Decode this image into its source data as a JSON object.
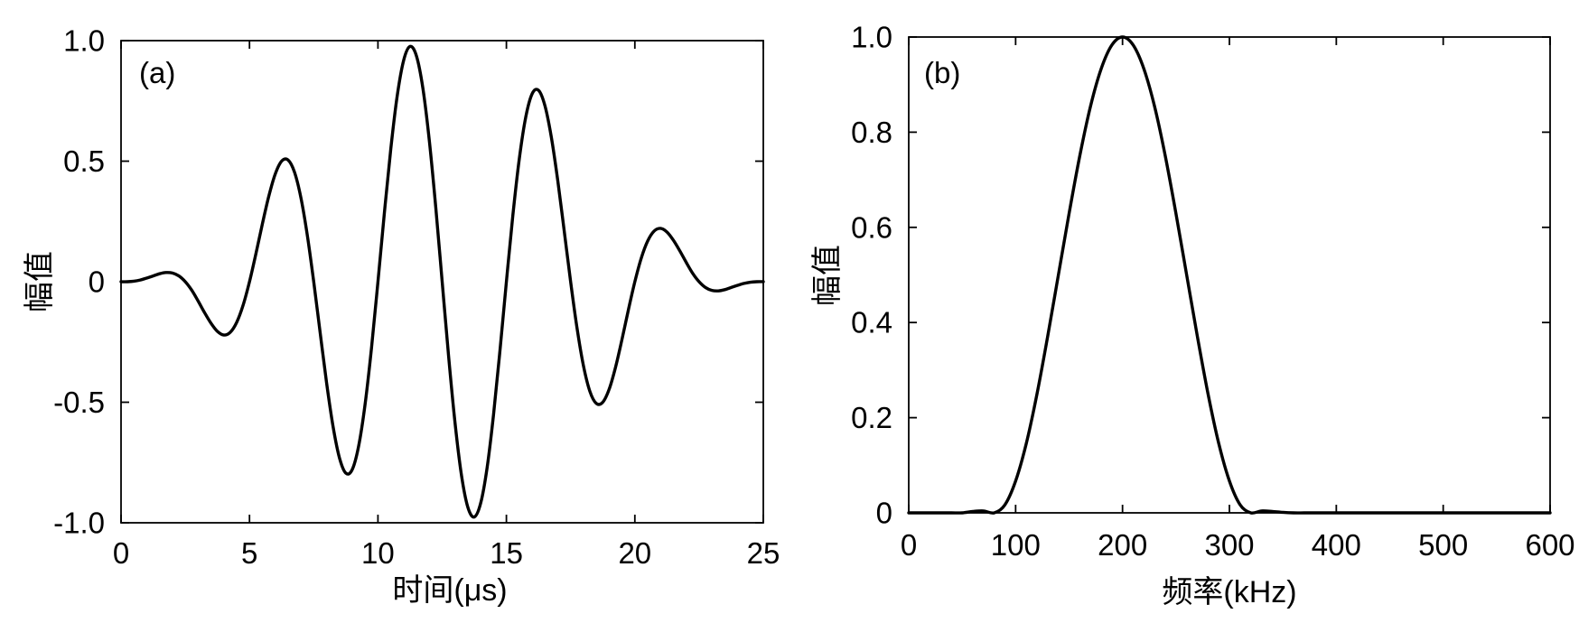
{
  "chart_data": [
    {
      "type": "line",
      "panel_label": "(a)",
      "xlabel": "时间(μs)",
      "ylabel": "幅值",
      "xlim": [
        0,
        25
      ],
      "ylim": [
        -1.0,
        1.0
      ],
      "xtick_labels": [
        "0",
        "5",
        "10",
        "15",
        "20",
        "25"
      ],
      "ytick_labels": [
        "-1.0",
        "-0.5",
        "0",
        "0.5",
        "1.0"
      ],
      "grid": false,
      "line_color": "#000000",
      "series": [
        {
          "x": [
            0,
            0.25,
            0.5,
            0.75,
            1,
            1.25,
            1.5,
            1.75,
            2,
            2.25,
            2.5,
            2.75,
            3,
            3.25,
            3.5,
            3.75,
            4,
            4.25,
            4.5,
            4.75,
            5,
            5.25,
            5.5,
            5.75,
            6,
            6.25,
            6.5,
            6.75,
            7,
            7.25,
            7.5,
            7.75,
            8,
            8.25,
            8.5,
            8.75,
            9,
            9.25,
            9.5,
            9.75,
            10,
            10.25,
            10.5,
            10.75,
            11,
            11.25,
            11.5,
            11.75,
            12,
            12.25,
            12.5,
            12.75,
            13,
            13.25,
            13.5,
            13.75,
            14,
            14.25,
            14.5,
            14.75,
            15,
            15.25,
            15.5,
            15.75,
            16,
            16.25,
            16.5,
            16.75,
            17,
            17.25,
            17.5,
            17.75,
            18,
            18.25,
            18.5,
            18.75,
            19,
            19.25,
            19.5,
            19.75,
            20,
            20.25,
            20.5,
            20.75,
            21,
            21.25,
            21.5,
            21.75,
            22,
            22.25,
            22.5,
            22.75,
            23,
            23.25,
            23.5,
            23.75,
            24,
            24.25,
            24.5,
            24.75,
            25
          ],
          "y": [
            0,
            0,
            0.002,
            0.007,
            0.015,
            0.024,
            0.033,
            0.038,
            0.036,
            0.024,
            0,
            -0.035,
            -0.08,
            -0.128,
            -0.172,
            -0.206,
            -0.221,
            -0.21,
            -0.169,
            -0.098,
            0,
            0.116,
            0.239,
            0.354,
            0.446,
            0.5,
            0.505,
            0.455,
            0.349,
            0.193,
            0,
            -0.211,
            -0.419,
            -0.599,
            -0.73,
            -0.794,
            -0.779,
            -0.681,
            -0.508,
            -0.274,
            0,
            0.285,
            0.551,
            0.771,
            0.918,
            0.976,
            0.936,
            0.802,
            0.585,
            0.309,
            0,
            -0.309,
            -0.585,
            -0.802,
            -0.936,
            -0.976,
            -0.918,
            -0.771,
            -0.551,
            -0.285,
            0,
            0.274,
            0.508,
            0.681,
            0.779,
            0.794,
            0.73,
            0.599,
            0.419,
            0.211,
            0,
            -0.193,
            -0.349,
            -0.455,
            -0.505,
            -0.5,
            -0.446,
            -0.354,
            -0.239,
            -0.116,
            0,
            0.098,
            0.169,
            0.21,
            0.221,
            0.206,
            0.172,
            0.128,
            0.08,
            0.035,
            0,
            -0.024,
            -0.036,
            -0.038,
            -0.033,
            -0.024,
            -0.015,
            -0.007,
            -0.002,
            0,
            0
          ]
        }
      ]
    },
    {
      "type": "line",
      "panel_label": "(b)",
      "xlabel": "频率(kHz)",
      "ylabel": "幅值",
      "xlim": [
        0,
        600
      ],
      "ylim": [
        0,
        1.0
      ],
      "xtick_labels": [
        "0",
        "100",
        "200",
        "300",
        "400",
        "500",
        "600"
      ],
      "ytick_labels": [
        "0",
        "0.2",
        "0.4",
        "0.6",
        "0.8",
        "1.0"
      ],
      "grid": false,
      "line_color": "#000000",
      "series": [
        {
          "x": [
            0,
            10,
            20,
            30,
            40,
            50,
            60,
            70,
            80,
            90,
            100,
            110,
            120,
            130,
            140,
            150,
            160,
            170,
            180,
            190,
            200,
            210,
            220,
            230,
            240,
            250,
            260,
            270,
            280,
            290,
            300,
            310,
            320,
            330,
            340,
            350,
            360,
            370,
            380,
            390,
            400,
            410,
            420,
            430,
            440,
            450,
            460,
            470,
            480,
            490,
            500,
            510,
            520,
            530,
            540,
            550,
            560,
            570,
            580,
            590,
            600
          ],
          "y": [
            0,
            0,
            0,
            0,
            0,
            0,
            0.003,
            0.004,
            0,
            0.017,
            0.067,
            0.146,
            0.25,
            0.371,
            0.5,
            0.629,
            0.75,
            0.854,
            0.933,
            0.983,
            1,
            0.983,
            0.933,
            0.854,
            0.75,
            0.629,
            0.5,
            0.371,
            0.25,
            0.146,
            0.067,
            0.017,
            0,
            0.004,
            0.003,
            0.001,
            0,
            0,
            0,
            0,
            0,
            0,
            0,
            0,
            0,
            0,
            0,
            0,
            0,
            0,
            0,
            0,
            0,
            0,
            0,
            0,
            0,
            0,
            0,
            0,
            0
          ]
        }
      ]
    }
  ]
}
